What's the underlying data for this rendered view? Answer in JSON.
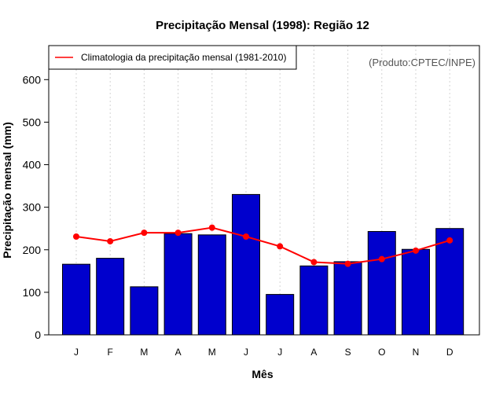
{
  "chart_data": {
    "type": "bar",
    "title": "Precipitação Mensal (1998): Região 12",
    "xlabel": "Mês",
    "ylabel": "Precipitação mensal (mm)",
    "categories": [
      "J",
      "F",
      "M",
      "A",
      "M",
      "J",
      "J",
      "A",
      "S",
      "O",
      "N",
      "D"
    ],
    "ylim": [
      0,
      680
    ],
    "yticks": [
      0,
      100,
      200,
      300,
      400,
      500,
      600
    ],
    "grid": "vertical dotted",
    "series": [
      {
        "name": "Precipitação mensal 1998",
        "kind": "bar",
        "color": "#0000cd",
        "values": [
          166,
          180,
          113,
          238,
          235,
          330,
          95,
          162,
          172,
          243,
          201,
          250
        ]
      },
      {
        "name": "Climatologia da precipitação mensal (1981-2010)",
        "kind": "line",
        "color": "#ff0000",
        "values": [
          231,
          220,
          240,
          240,
          252,
          231,
          208,
          171,
          167,
          178,
          198,
          222
        ]
      }
    ],
    "legend": {
      "position": "top-left",
      "entries": [
        "Climatologia da precipitação mensal (1981-2010)"
      ]
    },
    "annotation": "(Produto:CPTEC/INPE)"
  }
}
